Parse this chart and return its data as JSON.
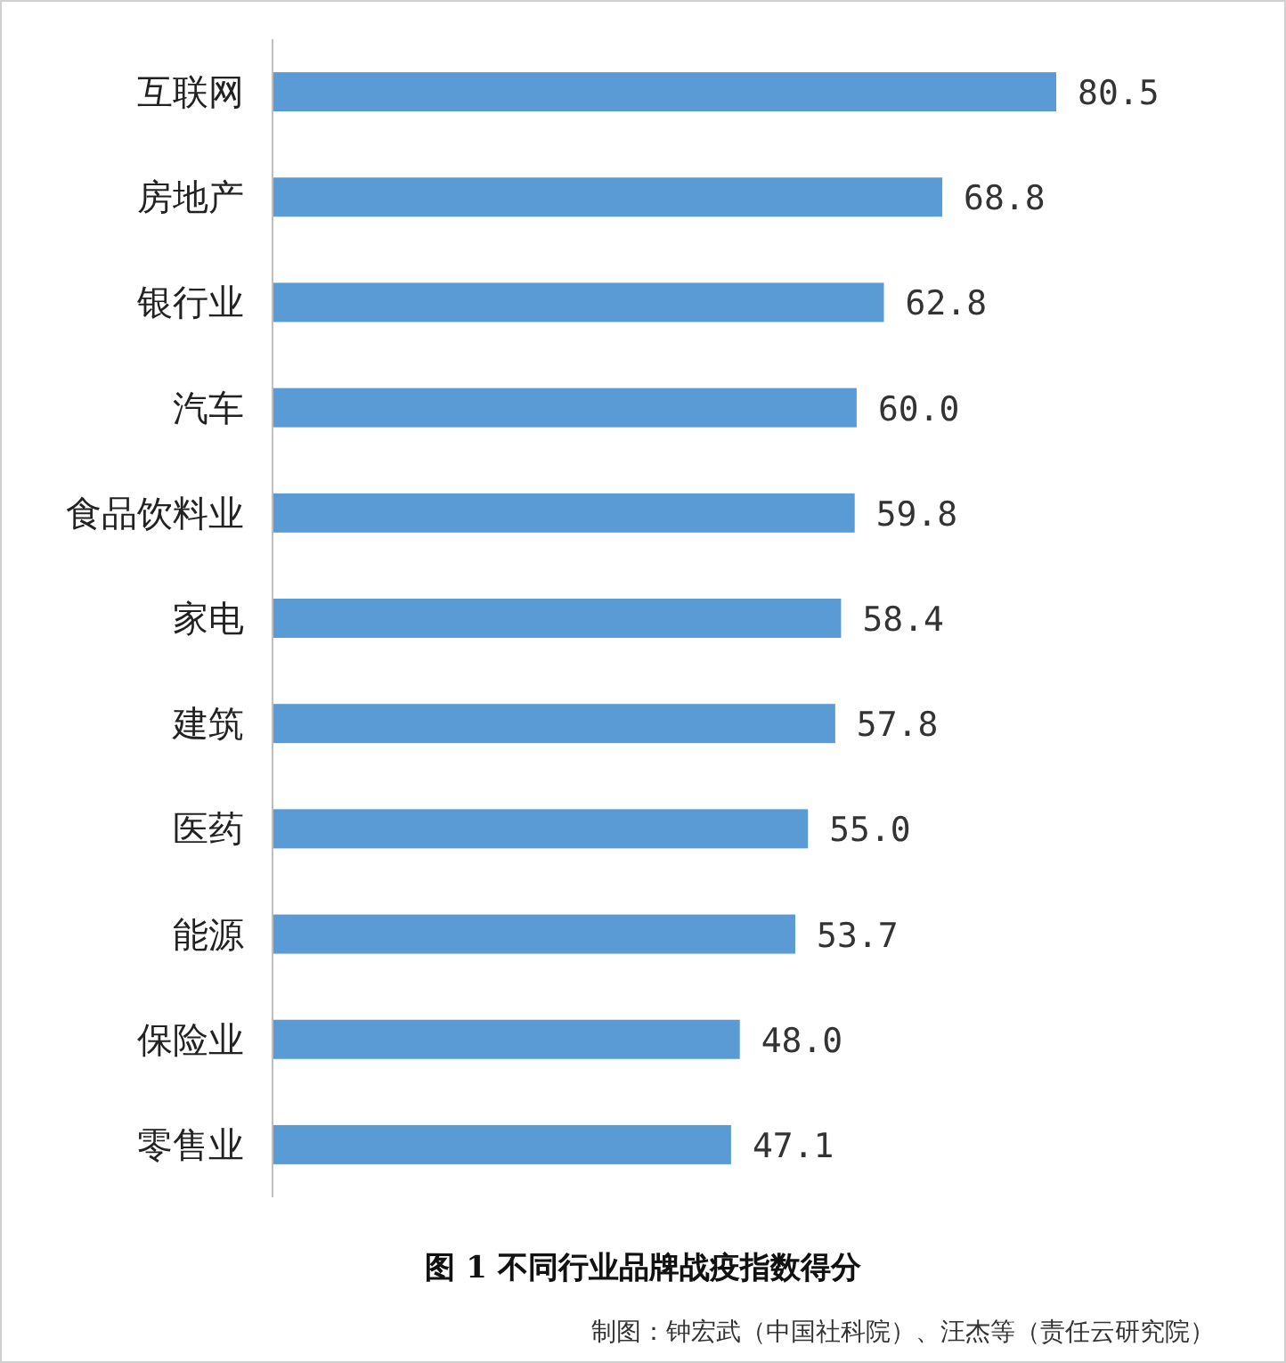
{
  "chart_data": {
    "type": "bar",
    "orientation": "horizontal",
    "title": "图 1 不同行业品牌战疫指数得分",
    "categories": [
      "互联网",
      "房地产",
      "银行业",
      "汽车",
      "食品饮料业",
      "家电",
      "建筑",
      "医药",
      "能源",
      "保险业",
      "零售业"
    ],
    "values": [
      80.5,
      68.8,
      62.8,
      60.0,
      59.8,
      58.4,
      57.8,
      55.0,
      53.7,
      48.0,
      47.1
    ],
    "value_labels": [
      "80.5",
      "68.8",
      "62.8",
      "60.0",
      "59.8",
      "58.4",
      "57.8",
      "55.0",
      "53.7",
      "48.0",
      "47.1"
    ],
    "color": "#5b9bd5",
    "data_labels": true,
    "annotations": [
      "制图：钟宏武（中国社科院）、汪杰等（责任云研究院）"
    ]
  }
}
